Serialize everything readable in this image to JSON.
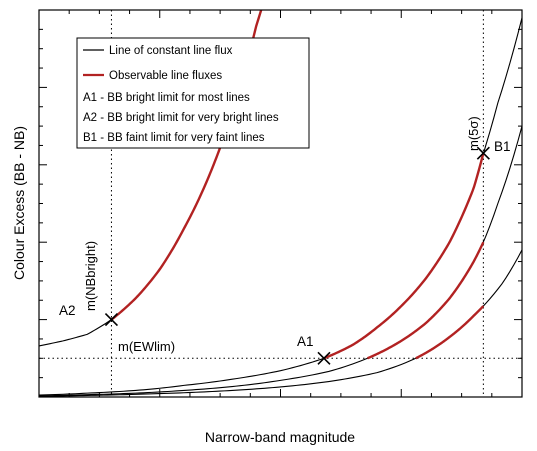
{
  "chart_data": {
    "type": "line",
    "title": "",
    "xlabel": "Narrow-band magnitude",
    "ylabel": "Colour Excess (BB - NB)",
    "xlim": [
      0,
      10
    ],
    "ylim": [
      0,
      10
    ],
    "grid": false,
    "legend_placement": "top-left",
    "legend": [
      {
        "kind": "line",
        "color": "#000000",
        "label": "Line of constant line flux"
      },
      {
        "kind": "line",
        "color": "#b22222",
        "label": "Observable line fluxes"
      },
      {
        "kind": "text",
        "label": "A1 - BB bright limit for most lines"
      },
      {
        "kind": "text",
        "label": "A2 - BB bright limit for very bright lines"
      },
      {
        "kind": "text",
        "label": "B1 - BB faint limit for very faint lines"
      }
    ],
    "reference_lines": [
      {
        "orientation": "vertical",
        "x": 1.5,
        "label": "m(NBbright)",
        "style": "dotted"
      },
      {
        "orientation": "vertical",
        "x": 9.2,
        "label": "m(5σ)",
        "style": "dotted"
      },
      {
        "orientation": "horizontal",
        "y": 1.0,
        "label": "m(EWlim)",
        "style": "dotted"
      }
    ],
    "markers": [
      {
        "label": "A1",
        "x": 5.9,
        "y": 1.0
      },
      {
        "label": "A2",
        "x": 1.5,
        "y": 2.0
      },
      {
        "label": "B1",
        "x": 9.2,
        "y": 6.3
      }
    ],
    "series": [
      {
        "color": "#000000",
        "observable_range": [
          1.5,
          6.2
        ],
        "points": [
          [
            0,
            1.32
          ],
          [
            0.5,
            1.45
          ],
          [
            1.0,
            1.62
          ],
          [
            1.5,
            2.0
          ],
          [
            2.0,
            2.55
          ],
          [
            2.5,
            3.3
          ],
          [
            3.0,
            4.35
          ],
          [
            3.5,
            5.65
          ],
          [
            4.0,
            7.35
          ],
          [
            4.5,
            9.6
          ],
          [
            4.6,
            10.0
          ]
        ]
      },
      {
        "color": "#000000",
        "observable_range": [
          5.9,
          9.2
        ],
        "points": [
          [
            0,
            0.05
          ],
          [
            1,
            0.1
          ],
          [
            2,
            0.17
          ],
          [
            3,
            0.3
          ],
          [
            4,
            0.46
          ],
          [
            5,
            0.68
          ],
          [
            5.9,
            1.0
          ],
          [
            6.5,
            1.35
          ],
          [
            7,
            1.8
          ],
          [
            7.5,
            2.35
          ],
          [
            8,
            3.05
          ],
          [
            8.5,
            4.0
          ],
          [
            9,
            5.4
          ],
          [
            9.2,
            6.3
          ],
          [
            9.5,
            7.6
          ],
          [
            10,
            9.8
          ]
        ]
      },
      {
        "color": "#000000",
        "observable_range": [
          6.8,
          9.2
        ],
        "points": [
          [
            0,
            0.03
          ],
          [
            1,
            0.06
          ],
          [
            2,
            0.1
          ],
          [
            3,
            0.17
          ],
          [
            4,
            0.27
          ],
          [
            5,
            0.43
          ],
          [
            6,
            0.66
          ],
          [
            6.8,
            1.0
          ],
          [
            7.5,
            1.45
          ],
          [
            8,
            1.9
          ],
          [
            8.5,
            2.55
          ],
          [
            9,
            3.5
          ],
          [
            9.2,
            4.0
          ],
          [
            9.5,
            5.0
          ],
          [
            10,
            7.0
          ]
        ]
      },
      {
        "color": "#000000",
        "observable_range": [
          7.8,
          9.2
        ],
        "points": [
          [
            0,
            0.02
          ],
          [
            1,
            0.04
          ],
          [
            2,
            0.07
          ],
          [
            3,
            0.11
          ],
          [
            4,
            0.17
          ],
          [
            5,
            0.26
          ],
          [
            6,
            0.4
          ],
          [
            7,
            0.63
          ],
          [
            7.8,
            1.0
          ],
          [
            8.5,
            1.55
          ],
          [
            9,
            2.1
          ],
          [
            9.2,
            2.35
          ],
          [
            9.6,
            2.95
          ],
          [
            10,
            3.8
          ]
        ]
      }
    ]
  }
}
